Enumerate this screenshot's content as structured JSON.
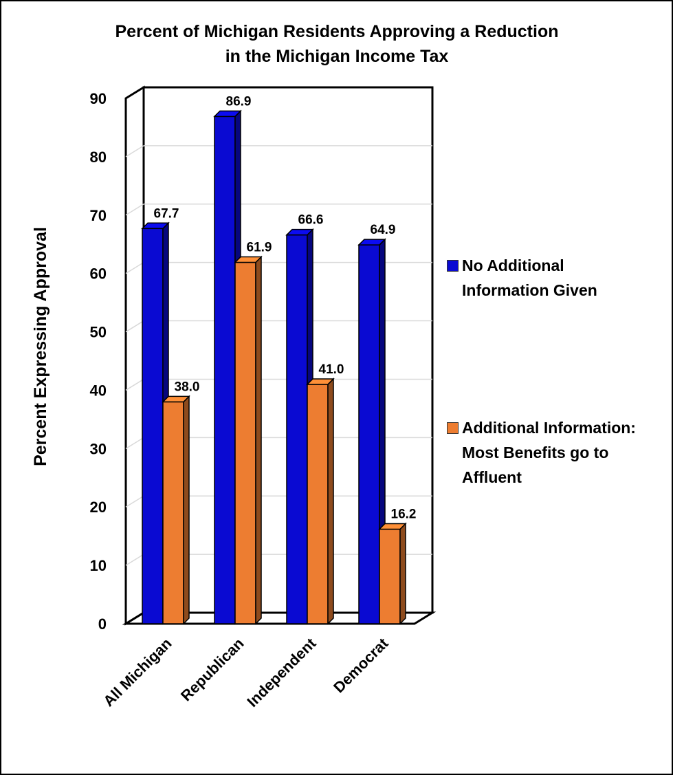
{
  "chart_data": {
    "type": "bar",
    "title_lines": [
      "Percent of Michigan Residents Approving a Reduction",
      "in the Michigan Income Tax"
    ],
    "xlabel": "",
    "ylabel": "Percent Expressing Approval",
    "categories": [
      "All Michigan",
      "Republican",
      "Independent",
      "Democrat"
    ],
    "ylim": [
      0,
      90
    ],
    "yticks": [
      "0",
      "10",
      "20",
      "30",
      "40",
      "50",
      "60",
      "70",
      "80",
      "90"
    ],
    "grid": true,
    "legend_position": "right",
    "series": [
      {
        "name_lines": [
          "No Additional",
          "Information Given"
        ],
        "values": [
          67.7,
          86.9,
          66.6,
          64.9
        ],
        "labels": [
          "67.7",
          "86.9",
          "66.6",
          "64.9"
        ],
        "color": "#0a0ad2"
      },
      {
        "name_lines": [
          "Additional Information:",
          "Most Benefits go to",
          "Affluent"
        ],
        "values": [
          38.0,
          61.9,
          41.0,
          16.2
        ],
        "labels": [
          "38.0",
          "61.9",
          "41.0",
          "16.2"
        ],
        "color": "#ed7d31"
      }
    ]
  }
}
